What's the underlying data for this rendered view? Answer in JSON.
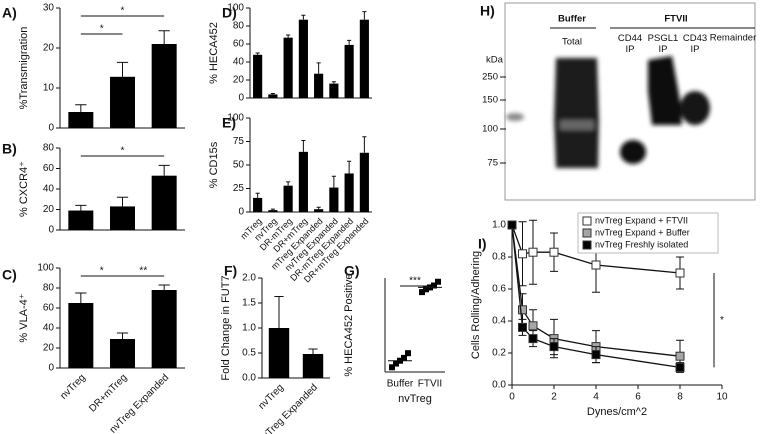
{
  "chart_data": [
    {
      "type": "bar",
      "title": "A)",
      "ylabel": "%Transmigration",
      "values": [
        4,
        12.8,
        21
      ],
      "errors": [
        1.8,
        3.6,
        3.3
      ],
      "color": "#000000",
      "ylim": [
        0,
        30
      ],
      "yticks": [
        0,
        10,
        20,
        30
      ],
      "comparisons": [
        {
          "label": "*",
          "between": [
            "nvTreg",
            "nvTreg Expanded"
          ]
        },
        {
          "label": "*",
          "between": [
            "nvTreg",
            "DR+mTreg"
          ]
        }
      ]
    },
    {
      "type": "bar",
      "title": "B)",
      "ylabel": "% CXCR4⁺",
      "values": [
        19,
        23,
        53
      ],
      "errors": [
        5,
        9,
        10
      ],
      "color": "#000000",
      "ylim": [
        0,
        80
      ],
      "yticks": [
        0,
        20,
        40,
        60,
        80
      ],
      "comparisons": [
        {
          "label": "*",
          "between": [
            "nvTreg",
            "nvTreg Expanded"
          ]
        }
      ]
    },
    {
      "type": "bar",
      "title": "C)",
      "ylabel": "% VLA-4⁺",
      "categories": [
        "nvTreg",
        "DR+mTreg",
        "nvTreg Expanded"
      ],
      "values": [
        65,
        29,
        78
      ],
      "errors": [
        10,
        6,
        5
      ],
      "color": "#000000",
      "ylim": [
        0,
        100
      ],
      "yticks": [
        0,
        20,
        40,
        60,
        80,
        100
      ],
      "comparisons": [
        {
          "label": "*",
          "between": [
            "nvTreg",
            "DR+mTreg"
          ]
        },
        {
          "label": "**",
          "between": [
            "DR+mTreg",
            "nvTreg Expanded"
          ]
        }
      ]
    },
    {
      "type": "bar",
      "title": "D)",
      "ylabel": "% HECA452",
      "values": [
        48,
        4,
        67,
        87,
        27,
        16,
        59,
        87
      ],
      "errors": [
        2,
        1,
        3,
        5,
        12,
        2,
        5,
        9
      ],
      "color": "#000000",
      "ylim": [
        0,
        100
      ],
      "yticks": [
        0,
        20,
        40,
        60,
        80,
        100
      ]
    },
    {
      "type": "bar",
      "title": "E)",
      "ylabel": "% CD15s",
      "categories": [
        "mTreg",
        "nvTreg",
        "DR-mTreg",
        "DR+mTreg",
        "mTreg Expanded",
        "nvTreg Expanded",
        "DR-mTreg Expanded",
        "DR+mTreg Expanded"
      ],
      "values": [
        15,
        2,
        28,
        64,
        3,
        26,
        41,
        63
      ],
      "errors": [
        5,
        1,
        4,
        12,
        2,
        12,
        13,
        17
      ],
      "color": "#000000",
      "ylim": [
        0,
        100
      ],
      "yticks": [
        0,
        25,
        50,
        75,
        100
      ]
    },
    {
      "type": "bar",
      "title": "F)",
      "ylabel": "Fold Change in FUT7",
      "categories": [
        "nvTreg",
        "nvTreg Expanded"
      ],
      "values": [
        1.0,
        0.48
      ],
      "errors": [
        0.63,
        0.1
      ],
      "color": "#000000",
      "ylim": [
        0,
        2
      ],
      "yticks": [
        {
          "value": 0,
          "label": "0.0"
        },
        0.5,
        {
          "value": 1,
          "label": "1.0"
        },
        1.5,
        {
          "value": 2,
          "label": "2.0"
        }
      ]
    },
    {
      "type": "strip",
      "title": "G)",
      "ylabel": "% HECA452 Positive",
      "xlabel": "nvTreg",
      "categories": [
        "Buffer",
        "FTVII"
      ],
      "points": [
        [
          5,
          9,
          12,
          15,
          20
        ],
        [
          85,
          88,
          90,
          92,
          96
        ]
      ],
      "means": [
        12,
        90
      ],
      "color": "#000000",
      "ylim": [
        0,
        100
      ],
      "comparisons": [
        {
          "label": "***",
          "between": [
            "Buffer",
            "FTVII"
          ]
        }
      ]
    },
    {
      "type": "line",
      "title": "I)",
      "xlabel": "Dynes/cm^2",
      "ylabel": "Cells Rolling/Adhering",
      "x": [
        0,
        0.5,
        1,
        2,
        4,
        8
      ],
      "series": [
        {
          "name": "nvTreg Expand + FTVII",
          "color": "#ffffff",
          "values": [
            1.0,
            0.82,
            0.83,
            0.83,
            0.75,
            0.7
          ],
          "errors": [
            0,
            0.2,
            0.2,
            0.12,
            0.17,
            0.1
          ]
        },
        {
          "name": "nvTreg Expand + Buffer",
          "color": "#a6a6a6",
          "values": [
            1.0,
            0.47,
            0.37,
            0.29,
            0.24,
            0.18
          ],
          "errors": [
            0,
            0.1,
            0.1,
            0.12,
            0.1,
            0.1
          ]
        },
        {
          "name": "nvTreg Freshly isolated",
          "color": "#000000",
          "values": [
            1.0,
            0.36,
            0.29,
            0.24,
            0.19,
            0.11
          ],
          "errors": [
            0,
            0.05,
            0.05,
            0.05,
            0.05,
            0.03
          ]
        }
      ],
      "xlim": [
        0,
        10
      ],
      "xticks": [
        0,
        2,
        4,
        6,
        8,
        10
      ],
      "ylim": [
        0,
        1
      ],
      "yticks": [
        {
          "value": 0,
          "label": "0.0"
        },
        0.2,
        0.4,
        0.6,
        0.8,
        {
          "value": 1,
          "label": "1.0"
        }
      ],
      "legend": "top-right",
      "annotations": [
        "*"
      ]
    }
  ],
  "blot": {
    "title": "H)",
    "groups": [
      "Buffer",
      "FTVII"
    ],
    "lanes": [
      "Total",
      "CD44 IP",
      "PSGL1 IP",
      "CD43 IP",
      "Remainder"
    ],
    "unit": "kDa",
    "markers": [
      250,
      150,
      100,
      75
    ]
  }
}
